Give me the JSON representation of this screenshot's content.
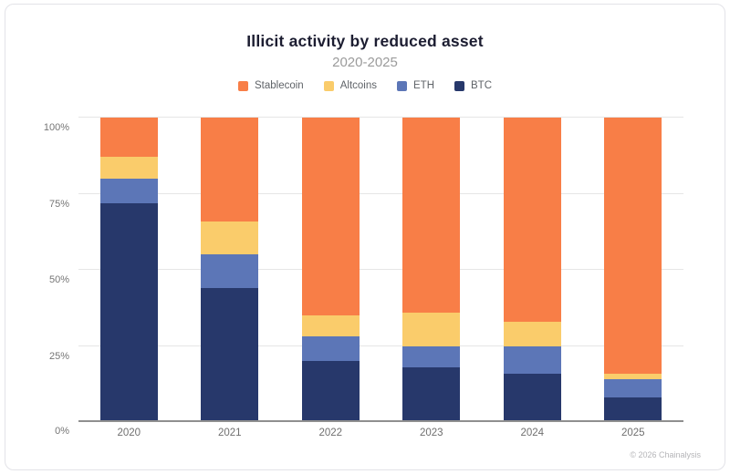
{
  "header": {
    "title": "Illicit activity by reduced asset",
    "subtitle": "2020-2025"
  },
  "footer": {
    "credit": "© 2026 Chainalysis"
  },
  "colors": {
    "stablecoin": "#F87E47",
    "altcoins": "#FACC6B",
    "eth": "#5C76B7",
    "btc": "#27386B",
    "gridline": "#e6e6e6",
    "baseline": "#8f8f8f",
    "axis_text": "#757575",
    "title_text": "#1c1d31",
    "subtitle_text": "#9b9b9b",
    "legend_text": "#5f6368",
    "credit_text": "#b5b5b8"
  },
  "legend": {
    "items": [
      {
        "label": "Stablecoin",
        "color": "#F87E47"
      },
      {
        "label": "Altcoins",
        "color": "#FACC6B"
      },
      {
        "label": "ETH",
        "color": "#5C76B7"
      },
      {
        "label": "BTC",
        "color": "#27386B"
      }
    ]
  },
  "chart_data": {
    "type": "bar",
    "stacked": true,
    "normalized_to_100_percent": true,
    "title": "Illicit activity by reduced asset",
    "subtitle": "2020-2025",
    "xlabel": "",
    "ylabel": "",
    "categories": [
      "2020",
      "2021",
      "2022",
      "2023",
      "2024",
      "2025"
    ],
    "series_order": "bottom-to-top",
    "series": [
      {
        "name": "BTC",
        "color": "#27386B",
        "values": [
          72,
          44,
          20,
          18,
          16,
          8
        ]
      },
      {
        "name": "ETH",
        "color": "#5C76B7",
        "values": [
          8,
          11,
          8,
          7,
          9,
          6
        ]
      },
      {
        "name": "Altcoins",
        "color": "#FACC6B",
        "values": [
          7,
          11,
          7,
          11,
          8,
          2
        ]
      },
      {
        "name": "Stablecoin",
        "color": "#F87E47",
        "values": [
          13,
          34,
          65,
          64,
          67,
          84
        ]
      }
    ],
    "ylim": [
      0,
      100
    ],
    "yticks": [
      {
        "value": 0,
        "label": "0%"
      },
      {
        "value": 25,
        "label": "25%"
      },
      {
        "value": 50,
        "label": "50%"
      },
      {
        "value": 75,
        "label": "75%"
      },
      {
        "value": 100,
        "label": "100%"
      }
    ],
    "grid": true,
    "legend_position": "top"
  }
}
